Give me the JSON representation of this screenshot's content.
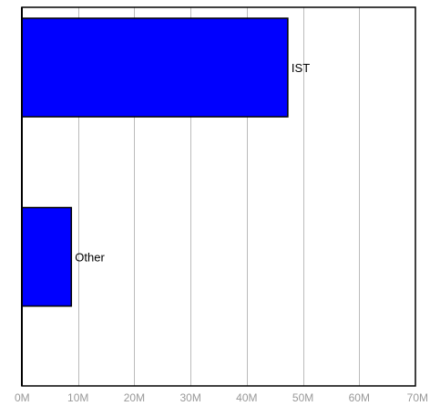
{
  "chart_data": {
    "type": "bar",
    "orientation": "horizontal",
    "categories": [
      "IST",
      "Other"
    ],
    "values": [
      47300000,
      8800000
    ],
    "xlim": [
      0,
      70000000
    ],
    "xticks": [
      0,
      10000000,
      20000000,
      30000000,
      40000000,
      50000000,
      60000000,
      70000000
    ],
    "xtick_labels": [
      "0M",
      "10M",
      "20M",
      "30M",
      "40M",
      "50M",
      "60M",
      "70M"
    ],
    "grid": "vertical",
    "colors": {
      "bar_fill": "#0000ff",
      "bar_stroke": "#000000",
      "grid": "#bbbbbb",
      "axis": "#000000",
      "tick_text": "#999999",
      "label_text": "#000000"
    }
  }
}
